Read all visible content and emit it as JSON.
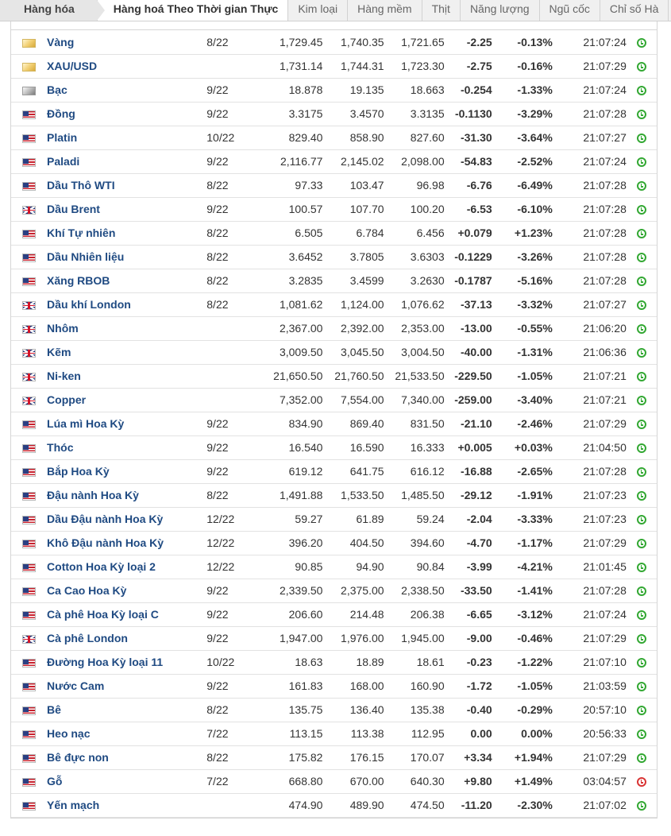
{
  "tabs": [
    {
      "label": "Hàng hóa"
    },
    {
      "label": "Hàng hoá Theo Thời gian Thực"
    },
    {
      "label": "Kim loại"
    },
    {
      "label": "Hàng mềm"
    },
    {
      "label": "Thịt"
    },
    {
      "label": "Năng lượng"
    },
    {
      "label": "Ngũ cốc"
    },
    {
      "label": "Chỉ số Hà"
    }
  ],
  "rows": [
    {
      "flag": "gold-icon",
      "name": "Vàng",
      "month": "8/22",
      "last": "1,729.45",
      "high": "1,740.35",
      "low": "1,721.65",
      "chg": "-2.25",
      "pct": "-0.13%",
      "time": "21:07:24",
      "dir": "neg",
      "status": "open"
    },
    {
      "flag": "gold-icon",
      "name": "XAU/USD",
      "month": "",
      "last": "1,731.14",
      "high": "1,744.31",
      "low": "1,723.30",
      "chg": "-2.75",
      "pct": "-0.16%",
      "time": "21:07:29",
      "dir": "neg",
      "status": "open"
    },
    {
      "flag": "silver-icon",
      "name": "Bạc",
      "month": "9/22",
      "last": "18.878",
      "high": "19.135",
      "low": "18.663",
      "chg": "-0.254",
      "pct": "-1.33%",
      "time": "21:07:24",
      "dir": "neg",
      "status": "open"
    },
    {
      "flag": "us-flag-icon",
      "name": "Đồng",
      "month": "9/22",
      "last": "3.3175",
      "high": "3.4570",
      "low": "3.3135",
      "chg": "-0.1130",
      "pct": "-3.29%",
      "time": "21:07:28",
      "dir": "neg",
      "status": "open"
    },
    {
      "flag": "us-flag-icon",
      "name": "Platin",
      "month": "10/22",
      "last": "829.40",
      "high": "858.90",
      "low": "827.60",
      "chg": "-31.30",
      "pct": "-3.64%",
      "time": "21:07:27",
      "dir": "neg",
      "status": "open"
    },
    {
      "flag": "us-flag-icon",
      "name": "Paladi",
      "month": "9/22",
      "last": "2,116.77",
      "high": "2,145.02",
      "low": "2,098.00",
      "chg": "-54.83",
      "pct": "-2.52%",
      "time": "21:07:24",
      "dir": "neg",
      "status": "open"
    },
    {
      "flag": "us-flag-icon",
      "name": "Dầu Thô WTI",
      "month": "8/22",
      "last": "97.33",
      "high": "103.47",
      "low": "96.98",
      "chg": "-6.76",
      "pct": "-6.49%",
      "time": "21:07:28",
      "dir": "neg",
      "status": "open"
    },
    {
      "flag": "uk-flag-icon",
      "name": "Dầu Brent",
      "month": "9/22",
      "last": "100.57",
      "high": "107.70",
      "low": "100.20",
      "chg": "-6.53",
      "pct": "-6.10%",
      "time": "21:07:28",
      "dir": "neg",
      "status": "open"
    },
    {
      "flag": "us-flag-icon",
      "name": "Khí Tự nhiên",
      "month": "8/22",
      "last": "6.505",
      "high": "6.784",
      "low": "6.456",
      "chg": "+0.079",
      "pct": "+1.23%",
      "time": "21:07:28",
      "dir": "pos",
      "status": "open"
    },
    {
      "flag": "us-flag-icon",
      "name": "Dầu Nhiên liệu",
      "month": "8/22",
      "last": "3.6452",
      "high": "3.7805",
      "low": "3.6303",
      "chg": "-0.1229",
      "pct": "-3.26%",
      "time": "21:07:28",
      "dir": "neg",
      "status": "open"
    },
    {
      "flag": "us-flag-icon",
      "name": "Xăng RBOB",
      "month": "8/22",
      "last": "3.2835",
      "high": "3.4599",
      "low": "3.2630",
      "chg": "-0.1787",
      "pct": "-5.16%",
      "time": "21:07:28",
      "dir": "neg",
      "status": "open"
    },
    {
      "flag": "uk-flag-icon",
      "name": "Dầu khí London",
      "month": "8/22",
      "last": "1,081.62",
      "high": "1,124.00",
      "low": "1,076.62",
      "chg": "-37.13",
      "pct": "-3.32%",
      "time": "21:07:27",
      "dir": "neg",
      "status": "open"
    },
    {
      "flag": "uk-flag-icon",
      "name": "Nhôm",
      "month": "",
      "last": "2,367.00",
      "high": "2,392.00",
      "low": "2,353.00",
      "chg": "-13.00",
      "pct": "-0.55%",
      "time": "21:06:20",
      "dir": "neg",
      "status": "open"
    },
    {
      "flag": "uk-flag-icon",
      "name": "Kẽm",
      "month": "",
      "last": "3,009.50",
      "high": "3,045.50",
      "low": "3,004.50",
      "chg": "-40.00",
      "pct": "-1.31%",
      "time": "21:06:36",
      "dir": "neg",
      "status": "open"
    },
    {
      "flag": "uk-flag-icon",
      "name": "Ni-ken",
      "month": "",
      "last": "21,650.50",
      "high": "21,760.50",
      "low": "21,533.50",
      "chg": "-229.50",
      "pct": "-1.05%",
      "time": "21:07:21",
      "dir": "neg",
      "status": "open"
    },
    {
      "flag": "uk-flag-icon",
      "name": "Copper",
      "month": "",
      "last": "7,352.00",
      "high": "7,554.00",
      "low": "7,340.00",
      "chg": "-259.00",
      "pct": "-3.40%",
      "time": "21:07:21",
      "dir": "neg",
      "status": "open"
    },
    {
      "flag": "us-flag-icon",
      "name": "Lúa mì Hoa Kỳ",
      "month": "9/22",
      "last": "834.90",
      "high": "869.40",
      "low": "831.50",
      "chg": "-21.10",
      "pct": "-2.46%",
      "time": "21:07:29",
      "dir": "neg",
      "status": "open"
    },
    {
      "flag": "us-flag-icon",
      "name": "Thóc",
      "month": "9/22",
      "last": "16.540",
      "high": "16.590",
      "low": "16.333",
      "chg": "+0.005",
      "pct": "+0.03%",
      "time": "21:04:50",
      "dir": "pos",
      "status": "open"
    },
    {
      "flag": "us-flag-icon",
      "name": "Bắp Hoa Kỳ",
      "month": "9/22",
      "last": "619.12",
      "high": "641.75",
      "low": "616.12",
      "chg": "-16.88",
      "pct": "-2.65%",
      "time": "21:07:28",
      "dir": "neg",
      "status": "open"
    },
    {
      "flag": "us-flag-icon",
      "name": "Đậu nành Hoa Kỳ",
      "month": "8/22",
      "last": "1,491.88",
      "high": "1,533.50",
      "low": "1,485.50",
      "chg": "-29.12",
      "pct": "-1.91%",
      "time": "21:07:23",
      "dir": "neg",
      "status": "open"
    },
    {
      "flag": "us-flag-icon",
      "name": "Dầu Đậu nành Hoa Kỳ",
      "month": "12/22",
      "last": "59.27",
      "high": "61.89",
      "low": "59.24",
      "chg": "-2.04",
      "pct": "-3.33%",
      "time": "21:07:23",
      "dir": "neg",
      "status": "open"
    },
    {
      "flag": "us-flag-icon",
      "name": "Khô Đậu nành Hoa Kỳ",
      "month": "12/22",
      "last": "396.20",
      "high": "404.50",
      "low": "394.60",
      "chg": "-4.70",
      "pct": "-1.17%",
      "time": "21:07:29",
      "dir": "neg",
      "status": "open"
    },
    {
      "flag": "us-flag-icon",
      "name": "Cotton Hoa Kỳ loại 2",
      "month": "12/22",
      "last": "90.85",
      "high": "94.90",
      "low": "90.84",
      "chg": "-3.99",
      "pct": "-4.21%",
      "time": "21:01:45",
      "dir": "neg",
      "status": "open"
    },
    {
      "flag": "us-flag-icon",
      "name": "Ca Cao Hoa Kỳ",
      "month": "9/22",
      "last": "2,339.50",
      "high": "2,375.00",
      "low": "2,338.50",
      "chg": "-33.50",
      "pct": "-1.41%",
      "time": "21:07:28",
      "dir": "neg",
      "status": "open"
    },
    {
      "flag": "us-flag-icon",
      "name": "Cà phê Hoa Kỳ loại C",
      "month": "9/22",
      "last": "206.60",
      "high": "214.48",
      "low": "206.38",
      "chg": "-6.65",
      "pct": "-3.12%",
      "time": "21:07:24",
      "dir": "neg",
      "status": "open"
    },
    {
      "flag": "uk-flag-icon",
      "name": "Cà phê London",
      "month": "9/22",
      "last": "1,947.00",
      "high": "1,976.00",
      "low": "1,945.00",
      "chg": "-9.00",
      "pct": "-0.46%",
      "time": "21:07:29",
      "dir": "neg",
      "status": "open"
    },
    {
      "flag": "us-flag-icon",
      "name": "Đường Hoa Kỳ loại 11",
      "month": "10/22",
      "last": "18.63",
      "high": "18.89",
      "low": "18.61",
      "chg": "-0.23",
      "pct": "-1.22%",
      "time": "21:07:10",
      "dir": "neg",
      "status": "open"
    },
    {
      "flag": "us-flag-icon",
      "name": "Nước Cam",
      "month": "9/22",
      "last": "161.83",
      "high": "168.00",
      "low": "160.90",
      "chg": "-1.72",
      "pct": "-1.05%",
      "time": "21:03:59",
      "dir": "neg",
      "status": "open"
    },
    {
      "flag": "us-flag-icon",
      "name": "Bê",
      "month": "8/22",
      "last": "135.75",
      "high": "136.40",
      "low": "135.38",
      "chg": "-0.40",
      "pct": "-0.29%",
      "time": "20:57:10",
      "dir": "neg",
      "status": "open"
    },
    {
      "flag": "us-flag-icon",
      "name": "Heo nạc",
      "month": "7/22",
      "last": "113.15",
      "high": "113.38",
      "low": "112.95",
      "chg": "0.00",
      "pct": "0.00%",
      "time": "20:56:33",
      "dir": "zero",
      "status": "open"
    },
    {
      "flag": "us-flag-icon",
      "name": "Bê đực non",
      "month": "8/22",
      "last": "175.82",
      "high": "176.15",
      "low": "170.07",
      "chg": "+3.34",
      "pct": "+1.94%",
      "time": "21:07:29",
      "dir": "pos",
      "status": "open"
    },
    {
      "flag": "us-flag-icon",
      "name": "Gỗ",
      "month": "7/22",
      "last": "668.80",
      "high": "670.00",
      "low": "640.30",
      "chg": "+9.80",
      "pct": "+1.49%",
      "time": "03:04:57",
      "dir": "pos",
      "status": "closed"
    },
    {
      "flag": "us-flag-icon",
      "name": "Yến mạch",
      "month": "",
      "last": "474.90",
      "high": "489.90",
      "low": "474.50",
      "chg": "-11.20",
      "pct": "-2.30%",
      "time": "21:07:02",
      "dir": "neg",
      "status": "open"
    }
  ],
  "colors": {
    "negative": "#e40c0c",
    "positive": "#0a9a0a",
    "name_link": "#1f4a82",
    "open_status": "#33a833",
    "closed_status": "#d93434"
  }
}
